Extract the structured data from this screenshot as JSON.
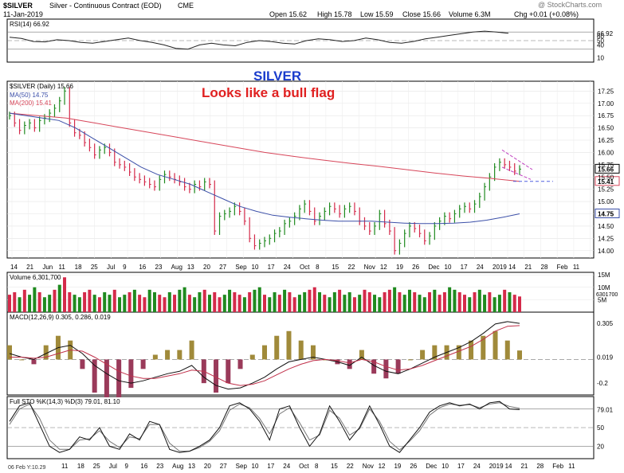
{
  "header": {
    "symbol": "$SILVER",
    "description": "Silver - Continuous Contract (EOD)",
    "exchange": "CME",
    "date": "11-Jan-2019",
    "watermark": "@ StockCharts.com",
    "open": "Open 15.62",
    "high": "High 15.78",
    "low": "Low 15.59",
    "close": "Close 15.66",
    "volume": "Volume 6.3M",
    "change": "Chg +0.01 (+0.08%)"
  },
  "annotations": {
    "title": "SILVER",
    "subtitle": "Looks like a bull flag"
  },
  "colors": {
    "up": "#1f8a1f",
    "down": "#d42a4a",
    "ma50": "#3b4fa8",
    "ma200": "#d7465a",
    "flag": "#c040c0",
    "flag_dash": "#5060e0",
    "title_blue": "#1a3ccc",
    "subtitle_red": "#e02020",
    "macd_hist": "#a08a3a",
    "macd_hist_neg": "#9a3a5a"
  },
  "chart_data": [
    {
      "type": "line",
      "panel": "rsi",
      "label": "RSI(14) 66.92",
      "value": "66.92",
      "right_ticks": [
        "66.92",
        "60",
        "50",
        "40",
        "10"
      ],
      "ylim": [
        0,
        100
      ],
      "series": [
        {
          "name": "RSI(14)",
          "values": [
            58,
            55,
            48,
            47,
            52,
            50,
            46,
            44,
            48,
            52,
            56,
            50,
            46,
            40,
            32,
            30,
            40,
            44,
            40,
            38,
            46,
            50,
            48,
            44,
            42,
            50,
            54,
            52,
            48,
            50,
            56,
            52,
            46,
            44,
            48,
            54,
            58,
            62,
            66,
            70,
            72,
            70,
            67
          ]
        }
      ]
    },
    {
      "type": "line",
      "panel": "price",
      "label": "$SILVER (Daily) 15.66",
      "legend": [
        {
          "name": "MA(50) 14.75",
          "color": "#3b4fa8"
        },
        {
          "name": "MA(200) 15.41",
          "color": "#d7465a"
        }
      ],
      "right_ticks": [
        "17.25",
        "17.00",
        "16.75",
        "16.50",
        "16.25",
        "16.00",
        "15.75",
        "15.50",
        "15.25",
        "15.00",
        "14.75",
        "14.50",
        "14.25",
        "14.00"
      ],
      "ylim": [
        13.85,
        17.45
      ],
      "last_values": {
        "close": "15.66",
        "ma200": "15.41",
        "ma50": "14.75"
      },
      "close": [
        16.75,
        16.6,
        16.45,
        16.55,
        16.6,
        16.5,
        16.65,
        16.7,
        16.8,
        16.9,
        17.05,
        17.25,
        16.6,
        16.4,
        16.35,
        16.2,
        16.1,
        15.95,
        16.05,
        16.1,
        16.0,
        15.8,
        15.75,
        15.7,
        15.6,
        15.5,
        15.45,
        15.4,
        15.35,
        15.3,
        15.45,
        15.55,
        15.5,
        15.45,
        15.4,
        15.3,
        15.25,
        15.35,
        15.3,
        15.4,
        15.35,
        14.4,
        14.7,
        14.75,
        14.8,
        14.9,
        14.8,
        14.6,
        14.25,
        14.1,
        14.15,
        14.2,
        14.25,
        14.35,
        14.4,
        14.55,
        14.6,
        14.7,
        14.85,
        14.95,
        14.8,
        14.6,
        14.7,
        14.8,
        14.9,
        14.85,
        14.75,
        14.85,
        14.9,
        14.8,
        14.6,
        14.5,
        14.4,
        14.5,
        14.75,
        14.55,
        14.4,
        14.0,
        14.15,
        14.35,
        14.5,
        14.45,
        14.35,
        14.2,
        14.3,
        14.5,
        14.6,
        14.7,
        14.65,
        14.75,
        14.85,
        14.9,
        14.85,
        14.95,
        15.1,
        15.3,
        15.5,
        15.7,
        15.8,
        15.75,
        15.7,
        15.62,
        15.66
      ],
      "ma50": [
        16.8,
        16.75,
        16.7,
        16.65,
        16.5,
        16.3,
        16.1,
        15.9,
        15.7,
        15.55,
        15.45,
        15.35,
        15.2,
        15.05,
        14.9,
        14.8,
        14.72,
        14.68,
        14.65,
        14.62,
        14.6,
        14.6,
        14.6,
        14.58,
        14.56,
        14.55,
        14.55,
        14.56,
        14.58,
        14.62,
        14.68,
        14.75
      ],
      "ma200": [
        16.8,
        16.75,
        16.7,
        16.6,
        16.5,
        16.4,
        16.3,
        16.2,
        16.1,
        16.0,
        15.92,
        15.85,
        15.78,
        15.72,
        15.65,
        15.58,
        15.52,
        15.47,
        15.41
      ]
    },
    {
      "type": "bar",
      "panel": "volume",
      "label": "Volume 6,301,700",
      "right_ticks": [
        "15M",
        "10M",
        "5M"
      ],
      "last_value": "6301700",
      "ylim": [
        0,
        16000000
      ],
      "values": [
        7,
        8,
        6,
        9,
        7,
        10,
        8,
        6,
        7,
        9,
        11,
        14,
        8,
        7,
        6,
        8,
        9,
        7,
        6,
        8,
        7,
        9,
        6,
        7,
        8,
        9,
        7,
        6,
        9,
        8,
        7,
        6,
        8,
        7,
        9,
        10,
        7,
        6,
        8,
        9,
        7,
        8,
        6,
        7,
        9,
        8,
        7,
        6,
        8,
        9,
        10,
        7,
        6,
        8,
        7,
        9,
        8,
        6,
        7,
        8,
        9,
        10,
        8,
        7,
        6,
        8,
        9,
        7,
        8,
        6,
        7,
        9,
        8,
        7,
        6,
        8,
        9,
        10,
        8,
        7,
        9,
        8,
        7,
        6,
        8,
        9,
        7,
        8,
        10,
        9,
        8,
        7,
        6,
        8,
        9,
        7,
        8,
        6,
        7,
        9,
        8,
        7,
        6.3
      ]
    },
    {
      "type": "line",
      "panel": "macd",
      "label": "MACD(12,26,9) 0.305, 0.286, 0.019",
      "right_ticks": [
        "0.305",
        "0.019",
        "-0.2"
      ],
      "ylim": [
        -0.3,
        0.4
      ],
      "series": [
        {
          "name": "MACD",
          "values": [
            0.05,
            0.02,
            0.0,
            0.05,
            0.1,
            0.12,
            0.05,
            -0.05,
            -0.12,
            -0.18,
            -0.2,
            -0.18,
            -0.15,
            -0.12,
            -0.1,
            -0.05,
            -0.15,
            -0.22,
            -0.25,
            -0.24,
            -0.2,
            -0.15,
            -0.08,
            -0.02,
            0.0,
            0.02,
            0.0,
            -0.02,
            -0.05,
            0.02,
            -0.05,
            -0.1,
            -0.12,
            -0.08,
            -0.03,
            0.02,
            0.06,
            0.1,
            0.15,
            0.22,
            0.3,
            0.32,
            0.305
          ]
        },
        {
          "name": "Signal",
          "values": [
            0.02,
            0.02,
            0.01,
            0.02,
            0.05,
            0.08,
            0.07,
            0.02,
            -0.04,
            -0.1,
            -0.14,
            -0.16,
            -0.16,
            -0.14,
            -0.12,
            -0.09,
            -0.1,
            -0.15,
            -0.2,
            -0.22,
            -0.21,
            -0.18,
            -0.13,
            -0.08,
            -0.04,
            -0.01,
            0.0,
            -0.01,
            -0.03,
            0.0,
            -0.02,
            -0.06,
            -0.09,
            -0.08,
            -0.05,
            -0.01,
            0.03,
            0.07,
            0.11,
            0.17,
            0.24,
            0.28,
            0.286
          ]
        }
      ]
    },
    {
      "type": "line",
      "panel": "sto",
      "label": "Full STO %K(14,3) %D(3) 79.01, 81.10",
      "right_ticks": [
        "79.01",
        "50",
        "20"
      ],
      "ylim": [
        0,
        100
      ],
      "series": [
        {
          "name": "%K",
          "values": [
            60,
            85,
            90,
            55,
            20,
            10,
            15,
            35,
            30,
            50,
            20,
            15,
            40,
            30,
            60,
            55,
            15,
            10,
            12,
            20,
            30,
            50,
            85,
            90,
            80,
            60,
            30,
            80,
            85,
            50,
            20,
            40,
            85,
            60,
            30,
            50,
            85,
            55,
            20,
            10,
            30,
            50,
            75,
            85,
            90,
            85,
            88,
            80,
            90,
            92,
            80,
            79
          ]
        },
        {
          "name": "%D",
          "values": [
            55,
            80,
            88,
            65,
            30,
            15,
            15,
            30,
            32,
            45,
            28,
            18,
            35,
            32,
            55,
            55,
            25,
            12,
            12,
            18,
            28,
            45,
            78,
            88,
            82,
            65,
            40,
            72,
            82,
            58,
            30,
            38,
            78,
            65,
            38,
            48,
            80,
            60,
            28,
            14,
            28,
            45,
            70,
            82,
            88,
            86,
            87,
            82,
            88,
            90,
            84,
            81
          ]
        }
      ]
    }
  ],
  "x_axis_top": [
    "14",
    "21",
    "Jun",
    "11",
    "18",
    "25",
    "Jul",
    "9",
    "16",
    "23",
    "Aug",
    "13",
    "20",
    "27",
    "Sep",
    "10",
    "17",
    "24",
    "Oct",
    "8",
    "15",
    "22",
    "Nov",
    "12",
    "19",
    "26",
    "Dec",
    "10",
    "17",
    "24",
    "2019",
    "14",
    "21",
    "28",
    "Feb",
    "11"
  ],
  "x_axis_bottom": [
    "06 Feb Y:10.29",
    "11",
    "18",
    "25",
    "Jul",
    "9",
    "16",
    "23",
    "Aug",
    "13",
    "20",
    "27",
    "Sep",
    "10",
    "17",
    "24",
    "Oct",
    "8",
    "15",
    "22",
    "Nov",
    "12",
    "19",
    "26",
    "Dec",
    "10",
    "17",
    "24",
    "2019",
    "14",
    "21",
    "28",
    "Feb",
    "11"
  ]
}
